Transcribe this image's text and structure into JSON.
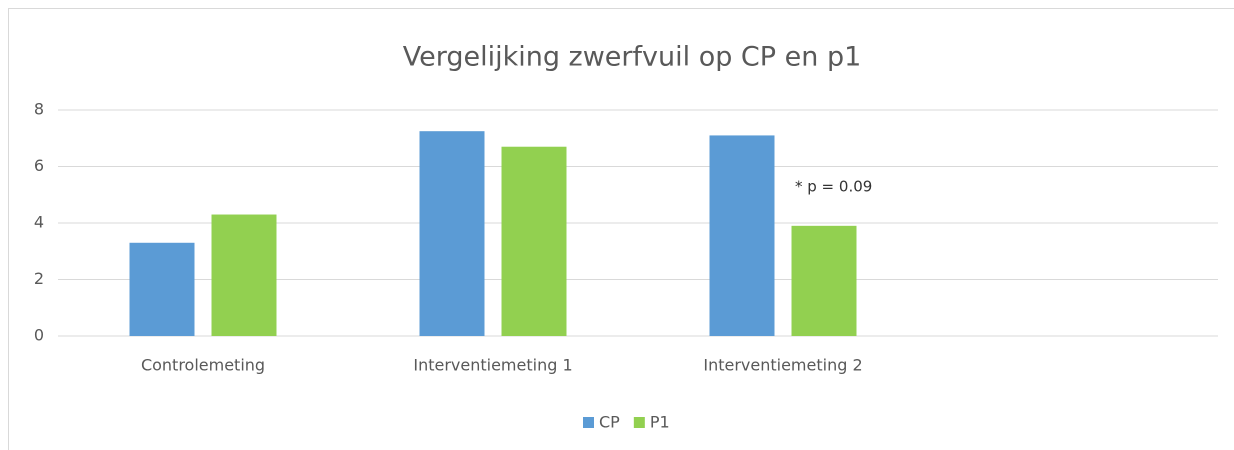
{
  "chart_data": {
    "type": "bar",
    "title": "Vergelijking zwerfvuil op CP en p1",
    "categories": [
      "Controlemeting",
      "Interventiemeting 1",
      "Interventiemeting 2",
      null
    ],
    "series": [
      {
        "name": "CP",
        "color": "#5b9bd5",
        "values": [
          3.3,
          7.25,
          7.1,
          null
        ]
      },
      {
        "name": "P1",
        "color": "#92d050",
        "values": [
          4.3,
          6.7,
          3.9,
          null
        ]
      }
    ],
    "annotation": "* p = 0.09",
    "ylim": [
      0,
      8
    ],
    "yticks": [
      0,
      2,
      4,
      6,
      8
    ],
    "grid": true,
    "legend": "bottom"
  }
}
